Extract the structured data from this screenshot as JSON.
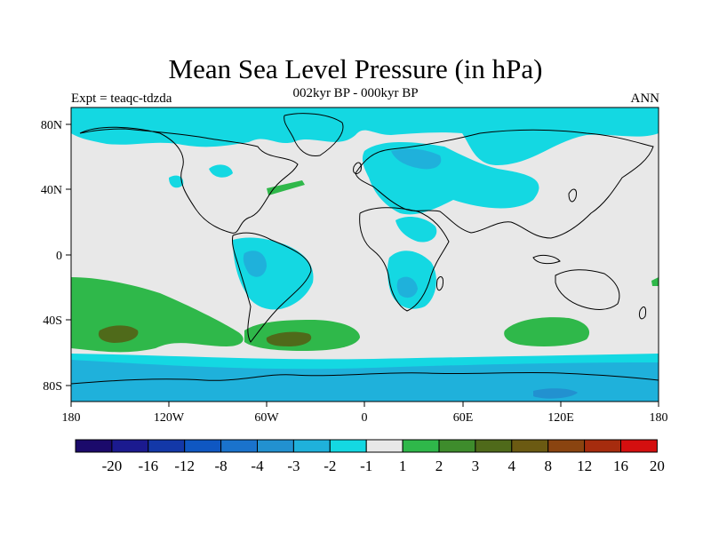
{
  "title": "Mean Sea Level Pressure (in hPa)",
  "subtitle": "002kyr BP - 000kyr BP",
  "experiment": "Expt = teaqc-tdzda",
  "season": "ANN",
  "lon_ticks": [
    "180",
    "120W",
    "60W",
    "0",
    "60E",
    "120E",
    "180"
  ],
  "lat_ticks": [
    "80N",
    "40N",
    "0",
    "40S",
    "80S"
  ],
  "colorbar": {
    "colors": [
      "#1b0a6b",
      "#1b1a8f",
      "#1338a8",
      "#0f57c2",
      "#1a73cc",
      "#2291d0",
      "#1fb1db",
      "#14d8e2",
      "#e8e8e8",
      "#2fb84a",
      "#3e8c2c",
      "#4f6a1a",
      "#6b5a12",
      "#8a4410",
      "#a62c0e",
      "#d40f0f"
    ],
    "labels": [
      "-20",
      "-16",
      "-12",
      "-8",
      "-4",
      "-3",
      "-2",
      "-1",
      "1",
      "2",
      "3",
      "4",
      "8",
      "12",
      "16",
      "20"
    ]
  },
  "colors": {
    "background": "#e8e8e8",
    "neg1": "#14d8e2",
    "neg2": "#1fb1db",
    "neg3": "#2291d0",
    "pos1": "#2fb84a",
    "pos2": "#4f6a1a"
  }
}
